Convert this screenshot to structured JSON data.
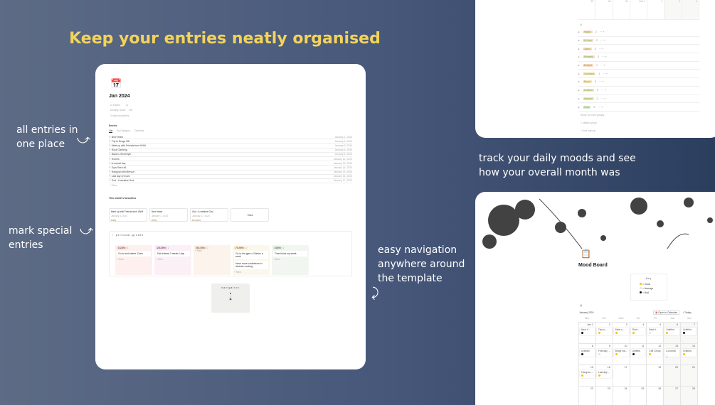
{
  "headline": "Keep your entries neatly organised",
  "notes": {
    "all_entries": "all entries in one place",
    "special": "mark special entries",
    "navigation": "easy navigation anywhere around the template",
    "moods": "track your daily moods and see how your overall month was"
  },
  "journal": {
    "title": "Jan 2024",
    "props": [
      {
        "label": "of entries",
        "value": "11"
      },
      {
        "label": "Monthly Score",
        "value": "0/8"
      }
    ],
    "more_props": "3 more properties",
    "entries_heading": "Entries",
    "tabs": [
      "List",
      "By Category",
      "Calendar"
    ],
    "entries": [
      {
        "name": "New Years",
        "date": "January 1, 2024"
      },
      {
        "name": "Trip to Broga Hill",
        "date": "January 2, 2024"
      },
      {
        "name": "Meet up with Friends from UNM",
        "date": "January 3, 2024"
      },
      {
        "name": "Rock Climbing",
        "date": "January 4, 2024"
      },
      {
        "name": "Back to Semenyih",
        "date": "January 5, 2024"
      },
      {
        "name": "Homes",
        "date": "January 12, 2024"
      },
      {
        "name": "A normal day",
        "date": "January 13, 2024"
      },
      {
        "name": "Gym Sesh #6",
        "date": "January 14, 2024"
      },
      {
        "name": "Hangout with Mervyn",
        "date": "January 15, 2024"
      },
      {
        "name": "Last day of exam",
        "date": "January 16, 2024"
      },
      {
        "name": "God : A creative God",
        "date": "January 17, 2024"
      }
    ],
    "new_label": "+ New",
    "favourites_heading": "This month's favourites",
    "favourites": [
      {
        "name": "Meet up with Friends from UNM",
        "date": "January 3, 2024",
        "tag": "Daily"
      },
      {
        "name": "New Years",
        "date": "January 1, 2024",
        "tag": "Daily"
      },
      {
        "name": "God : A creative God",
        "date": "January 17, 2024",
        "tag": "Devotion"
      }
    ],
    "growth_title": "personal-growth",
    "growth_columns": [
      {
        "label": "0-24%",
        "count": "1",
        "items": [
          "Go to bed before 12am"
        ],
        "color": "#fdf0ee",
        "tag": "#f8d6d0"
      },
      {
        "label": "25-49%",
        "count": "1",
        "items": [
          "Eat at least 3 meals / day"
        ],
        "color": "#fbf0f6",
        "tag": "#f3d3e6"
      },
      {
        "label": "50-74%",
        "count": "0",
        "items": [],
        "color": "#fcf3ec",
        "tag": "#f6dcc6"
      },
      {
        "label": "75-99%",
        "count": "2",
        "items": [
          "Go to the gym x 3 times a week",
          "Have more confidence in decision making"
        ],
        "color": "#fcf7ec",
        "tag": "#f7e6bd"
      },
      {
        "label": "100%",
        "count": "1",
        "items": [
          "Time block my week"
        ],
        "color": "#f2f6f1",
        "tag": "#d6e8d2"
      }
    ],
    "nav_title": "navigation"
  },
  "moods": {
    "week_days": [
      "29",
      "30",
      "31",
      "Feb 1",
      "2",
      "3",
      "4"
    ],
    "groups": [
      {
        "name": "Happy",
        "count": "2",
        "color": "#fbdcc6"
      },
      {
        "name": "In Love",
        "count": "2",
        "color": "#fbdcc6"
      },
      {
        "name": "Joyful",
        "count": "3",
        "color": "#fbdcc6"
      },
      {
        "name": "Peaceful",
        "count": "3",
        "color": "#fbdcc6"
      },
      {
        "name": "Excited",
        "count": "1",
        "color": "#fbdcc6"
      },
      {
        "name": "Confident",
        "count": "1",
        "color": "#fae5bd"
      },
      {
        "name": "Proud",
        "count": "0",
        "color": "#fae5bd"
      },
      {
        "name": "Grateful",
        "count": "3",
        "color": "#fae5bd"
      },
      {
        "name": "Hopeful",
        "count": "2",
        "color": "#fae5bd"
      },
      {
        "name": "Tired",
        "count": "0",
        "color": "#d5e9d3"
      }
    ],
    "show_more": "Show 10 more groups",
    "hidden": "1 hidden group",
    "add_group": "+ Add a group"
  },
  "board": {
    "title": "Mood Board",
    "key_title": "key",
    "key": [
      {
        "label": "= Good",
        "color": "#f5c400"
      },
      {
        "label": "= Average",
        "color": "#e3e3e3"
      },
      {
        "label": "= Bad",
        "color": "#111111"
      }
    ],
    "month": "January 2024",
    "open_calendar": "Open in Calendar",
    "today": "Today",
    "weekdays": [
      "Mon",
      "Tue",
      "Wed",
      "Thu",
      "Fri",
      "Sat",
      "Sun"
    ],
    "weeks": [
      [
        {
          "d": "Jan 1",
          "e": "New Y...",
          "m": 2
        },
        {
          "d": "2",
          "e": "Trip to...",
          "m": 0
        },
        {
          "d": "3",
          "e": "Meet u...",
          "m": 0
        },
        {
          "d": "4",
          "e": "Rock ...",
          "m": 0
        },
        {
          "d": "5",
          "e": "Back t...",
          "m": 1
        },
        {
          "d": "6",
          "e": "Untitled",
          "m": 0
        },
        {
          "d": "7",
          "e": "Untitled",
          "m": 2
        }
      ],
      [
        {
          "d": "8",
          "e": "Untitled",
          "m": 2
        },
        {
          "d": "9",
          "e": "First day ...",
          "m": 1
        },
        {
          "d": "10",
          "e": "Binge wa...",
          "m": 0
        },
        {
          "d": "11",
          "e": "Untitled",
          "m": 2
        },
        {
          "d": "12",
          "e": "Cell Group",
          "m": 0
        },
        {
          "d": "13",
          "e": "A normal ...",
          "m": 1
        },
        {
          "d": "14",
          "e": "Untitled",
          "m": 0
        }
      ],
      [
        {
          "d": "15",
          "e": "Hangout ...",
          "m": 0
        },
        {
          "d": "16",
          "e": "Last day ...",
          "m": 0
        },
        {
          "d": "17"
        },
        {
          "d": "18",
          "today": true
        },
        {
          "d": "19"
        },
        {
          "d": "20"
        },
        {
          "d": "21"
        }
      ],
      [
        {
          "d": "22"
        },
        {
          "d": "23"
        },
        {
          "d": "24"
        },
        {
          "d": "25"
        },
        {
          "d": "26"
        },
        {
          "d": "27"
        },
        {
          "d": "28"
        }
      ]
    ]
  }
}
